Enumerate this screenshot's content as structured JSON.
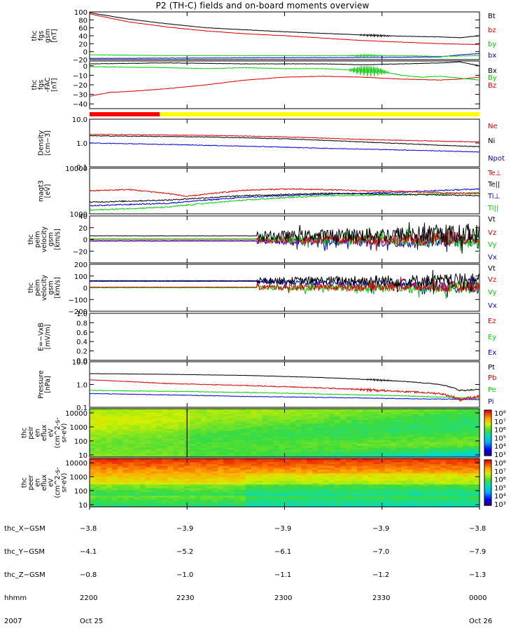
{
  "title": "P2 (TH-C) fields and on-board moments overview",
  "colors": {
    "black": "#000000",
    "red": "#e00000",
    "green": "#00d000",
    "blue": "#0000e0",
    "redBar": "#ff0000",
    "yellowBar": "#ffff00"
  },
  "chart_data": [
    {
      "type": "line",
      "id": "fgs_gsm",
      "ylabel": [
        "thc",
        "fgs",
        "gsm",
        "[nT]"
      ],
      "ylim": [
        -20,
        100
      ],
      "yticks": [
        -20,
        0,
        20,
        40,
        60,
        80,
        100
      ],
      "ytick_labels": [
        "−20",
        "0",
        "20",
        "40",
        "60",
        "80",
        "100"
      ],
      "series": [
        {
          "name": "Bt",
          "color": "black",
          "x": [
            0,
            0.1,
            0.2,
            0.3,
            0.4,
            0.5,
            0.6,
            0.65,
            0.7,
            0.75,
            0.8,
            0.9,
            0.95,
            1.0
          ],
          "values": [
            98,
            82,
            70,
            60,
            55,
            50,
            46,
            44,
            42,
            40,
            39,
            37,
            35,
            40
          ],
          "osc": [
            0.68,
            0.78,
            3
          ]
        },
        {
          "name": "bz",
          "color": "red",
          "x": [
            0,
            0.1,
            0.2,
            0.3,
            0.4,
            0.5,
            0.6,
            0.7,
            0.8,
            0.9,
            1.0
          ],
          "values": [
            95,
            75,
            62,
            52,
            45,
            40,
            34,
            28,
            24,
            20,
            18
          ]
        },
        {
          "name": "by",
          "color": "green",
          "x": [
            0,
            0.2,
            0.4,
            0.6,
            0.7,
            0.8,
            0.9,
            1.0
          ],
          "values": [
            -8,
            -10,
            -10,
            -10,
            -10,
            -10,
            -12,
            -10
          ],
          "osc": [
            0.66,
            0.76,
            3
          ]
        },
        {
          "name": "bx",
          "color": "blue",
          "x": [
            0,
            0.3,
            0.6,
            0.8,
            0.9,
            0.95,
            1.0
          ],
          "values": [
            -17,
            -16,
            -15,
            -14,
            -13,
            -8,
            -5
          ]
        }
      ]
    },
    {
      "type": "line",
      "id": "fgs_fac",
      "ylabel": [
        "thc",
        "fgs",
        "-FAC",
        "[nT]"
      ],
      "ylim": [
        -45,
        5
      ],
      "yticks": [
        -40,
        -30,
        -20,
        -10,
        0
      ],
      "ytick_labels": [
        "−40",
        "−30",
        "−20",
        "−10",
        "0"
      ],
      "series": [
        {
          "name": "Bx",
          "color": "black",
          "x": [
            0,
            0.2,
            0.4,
            0.6,
            0.7,
            0.8,
            0.9,
            0.95,
            1.0
          ],
          "values": [
            2,
            3,
            2,
            2,
            1,
            2,
            3,
            4,
            0
          ]
        },
        {
          "name": "By",
          "color": "green",
          "x": [
            0,
            0.2,
            0.3,
            0.4,
            0.5,
            0.6,
            0.7,
            0.75,
            0.8,
            0.85,
            0.9,
            0.95,
            1.0
          ],
          "values": [
            -1,
            -2,
            -3,
            -2,
            -3,
            -3,
            -5,
            -6,
            -10,
            -12,
            -11,
            -13,
            -15
          ],
          "osc": [
            0.66,
            0.77,
            6
          ]
        },
        {
          "name": "Bz",
          "color": "red",
          "x": [
            0,
            0.05,
            0.1,
            0.2,
            0.3,
            0.4,
            0.5,
            0.6,
            0.7,
            0.8,
            0.9,
            0.95,
            1.0
          ],
          "values": [
            -32,
            -28,
            -27,
            -24,
            -20,
            -15,
            -12,
            -11,
            -12,
            -14,
            -15,
            -14,
            -12
          ]
        }
      ]
    },
    {
      "type": "line",
      "id": "density",
      "ylabel": [
        "Density",
        "[cm−3]"
      ],
      "scale": "log",
      "ylim": [
        0.1,
        10
      ],
      "yticks": [
        0.1,
        1,
        10
      ],
      "ytick_labels": [
        "0.1",
        "1.0",
        "10.0"
      ],
      "series": [
        {
          "name": "Ne",
          "color": "red",
          "x": [
            0,
            0.3,
            0.5,
            0.7,
            0.9,
            1.0
          ],
          "values": [
            2.3,
            2.1,
            1.8,
            1.4,
            1.2,
            1.1
          ]
        },
        {
          "name": "Ni",
          "color": "black",
          "x": [
            0,
            0.3,
            0.5,
            0.7,
            0.9,
            1.0
          ],
          "values": [
            2.0,
            1.8,
            1.5,
            1.1,
            0.8,
            0.7
          ]
        },
        {
          "name": "Npot",
          "color": "blue",
          "x": [
            0,
            0.3,
            0.6,
            1.0
          ],
          "values": [
            1.0,
            0.8,
            0.6,
            0.42
          ]
        }
      ]
    },
    {
      "type": "line",
      "id": "temperature",
      "ylabel": [
        "magt3",
        "[eV]"
      ],
      "scale": "log",
      "ylim": [
        1000,
        10000
      ],
      "yticks": [
        1000,
        10000
      ],
      "ytick_labels": [
        "1000",
        "10000"
      ],
      "series": [
        {
          "name": "Te⊥",
          "color": "red",
          "x": [
            0,
            0.1,
            0.2,
            0.25,
            0.3,
            0.4,
            0.5,
            0.6,
            0.7,
            0.8,
            0.9,
            1.0
          ],
          "values": [
            3200,
            3400,
            2800,
            2400,
            2700,
            3300,
            3500,
            3400,
            3200,
            3100,
            2900,
            2800
          ]
        },
        {
          "name": "Te||",
          "color": "black",
          "x": [
            0,
            0.2,
            0.4,
            0.6,
            0.8,
            1.0
          ],
          "values": [
            1800,
            2000,
            2500,
            2800,
            2700,
            2500
          ]
        },
        {
          "name": "Ti⊥",
          "color": "blue",
          "x": [
            0,
            0.2,
            0.4,
            0.6,
            0.8,
            1.0
          ],
          "values": [
            1500,
            1700,
            2300,
            2700,
            3000,
            3500
          ]
        },
        {
          "name": "Ti||",
          "color": "green",
          "x": [
            0,
            0.2,
            0.4,
            0.6,
            0.8,
            1.0
          ],
          "values": [
            1200,
            1400,
            2000,
            2500,
            2600,
            2900
          ]
        }
      ]
    },
    {
      "type": "line",
      "id": "peim_velocity_gsm",
      "ylabel": [
        "thc",
        "peim",
        "velocity",
        "gsm",
        "[km/s]"
      ],
      "ylim": [
        -40,
        40
      ],
      "yticks": [
        -20,
        0,
        20,
        40
      ],
      "ytick_labels": [
        "−20",
        "0",
        "20",
        "40"
      ],
      "noise_start": 0.43,
      "series": [
        {
          "name": "Vt",
          "color": "black",
          "x": [
            0,
            0.43,
            1.0
          ],
          "values": [
            6,
            6,
            10
          ],
          "noise": 12
        },
        {
          "name": "Vz",
          "color": "red",
          "x": [
            0,
            0.43,
            1.0
          ],
          "values": [
            -1,
            -1,
            0
          ],
          "noise": 9
        },
        {
          "name": "Vy",
          "color": "green",
          "x": [
            0,
            0.43,
            1.0
          ],
          "values": [
            1,
            1,
            -2
          ],
          "noise": 9
        },
        {
          "name": "Vx",
          "color": "blue",
          "x": [
            0,
            0.43,
            1.0
          ],
          "values": [
            -3,
            -3,
            -3
          ],
          "noise": 9
        }
      ]
    },
    {
      "type": "line",
      "id": "peim_velocity",
      "ylabel": [
        "thc",
        "peim",
        "velocity",
        "gsm",
        "[km/s]"
      ],
      "ylim": [
        -200,
        200
      ],
      "yticks": [
        -200,
        -100,
        0,
        100,
        200
      ],
      "ytick_labels": [
        "−200",
        "−100",
        "0",
        "100",
        "200"
      ],
      "noise_start": 0.43,
      "series": [
        {
          "name": "Vt",
          "color": "black",
          "x": [
            0,
            0.43,
            1.0
          ],
          "values": [
            60,
            60,
            60
          ],
          "noise": 45
        },
        {
          "name": "Vz",
          "color": "red",
          "x": [
            0,
            0.43,
            1.0
          ],
          "values": [
            5,
            5,
            10
          ],
          "noise": 35
        },
        {
          "name": "Vy",
          "color": "green",
          "x": [
            0,
            0.43,
            1.0
          ],
          "values": [
            0,
            0,
            0
          ],
          "noise": 35
        },
        {
          "name": "Vx",
          "color": "blue",
          "x": [
            0,
            0.43,
            1.0
          ],
          "values": [
            55,
            55,
            0
          ],
          "noise": 35
        }
      ]
    },
    {
      "type": "line",
      "id": "efield",
      "ylabel": [
        "E=−VxB",
        "[mV/m]"
      ],
      "ylim": [
        0,
        1
      ],
      "yticks": [
        0,
        0.2,
        0.4,
        0.6,
        0.8,
        1.0
      ],
      "ytick_labels": [
        "0.0",
        "0.2",
        "0.4",
        "0.6",
        "0.8",
        "1.0"
      ],
      "series": [
        {
          "name": "Ez",
          "color": "red",
          "x": [],
          "values": []
        },
        {
          "name": "Ey",
          "color": "green",
          "x": [],
          "values": []
        },
        {
          "name": "Ex",
          "color": "blue",
          "x": [],
          "values": []
        }
      ]
    },
    {
      "type": "line",
      "id": "pressure",
      "ylabel": [
        "Pressure",
        "[nPa]"
      ],
      "scale": "log",
      "ylim": [
        0.1,
        10
      ],
      "yticks": [
        0.1,
        1,
        10
      ],
      "ytick_labels": [
        "0.1",
        "1.0",
        "10.0"
      ],
      "series": [
        {
          "name": "Pt",
          "color": "black",
          "x": [
            0,
            0.2,
            0.4,
            0.6,
            0.8,
            0.9,
            0.95,
            1.0
          ],
          "values": [
            3.0,
            2.8,
            2.5,
            2.0,
            1.4,
            1.0,
            0.55,
            0.6
          ],
          "osc": [
            0.7,
            0.78,
            0.05
          ]
        },
        {
          "name": "Pb",
          "color": "red",
          "x": [
            0,
            0.2,
            0.4,
            0.6,
            0.8,
            0.9,
            0.95,
            1.0
          ],
          "values": [
            1.6,
            1.1,
            0.9,
            0.7,
            0.5,
            0.4,
            0.22,
            0.3
          ],
          "osc": [
            0.68,
            0.78,
            0.05
          ]
        },
        {
          "name": "Pe",
          "color": "green",
          "x": [
            0,
            0.2,
            0.4,
            0.6,
            0.8,
            0.9,
            1.0
          ],
          "values": [
            0.55,
            0.5,
            0.45,
            0.38,
            0.32,
            0.28,
            0.25
          ]
        },
        {
          "name": "Pi",
          "color": "blue",
          "x": [
            0,
            0.2,
            0.4,
            0.6,
            0.8,
            1.0
          ],
          "values": [
            0.4,
            0.35,
            0.3,
            0.27,
            0.24,
            0.22
          ]
        }
      ]
    },
    {
      "type": "heatmap",
      "id": "peir_spectrogram",
      "ylabel": [
        "thc",
        "peir",
        "en",
        "eflux",
        "eV",
        "(cm^2-s-",
        "sr-eV)"
      ],
      "scale": "log",
      "ylim": [
        7,
        20000
      ],
      "yticks": [
        10,
        100,
        1000,
        10000
      ],
      "ytick_labels": [
        "10",
        "100",
        "1000",
        "10000"
      ],
      "colorbar_ticks": [
        "10³",
        "10⁴",
        "10⁵",
        "10⁶",
        "10⁷",
        "10⁸"
      ]
    },
    {
      "type": "heatmap",
      "id": "peer_spectrogram",
      "ylabel": [
        "thc",
        "peer",
        "en",
        "eflux",
        "eV",
        "(cm^2-s-",
        "sr-eV)"
      ],
      "scale": "log",
      "ylim": [
        7,
        20000
      ],
      "yticks": [
        10,
        100,
        1000,
        10000
      ],
      "ytick_labels": [
        "10",
        "100",
        "1000",
        "10000"
      ],
      "colorbar_ticks": [
        "10³",
        "10⁴",
        "10⁵",
        "10⁶",
        "10⁷",
        "10⁸"
      ]
    }
  ],
  "mode_bar": {
    "red_end_fraction": 0.18,
    "colors": [
      "red",
      "yellow"
    ]
  },
  "footer": {
    "row_labels": [
      "thc_X−GSM",
      "thc_Y−GSM",
      "thc_Z−GSM",
      "hhmm",
      "2007"
    ],
    "columns": [
      {
        "lines": [
          "−3.8",
          "−4.1",
          "−0.8",
          "2200",
          "Oct 25"
        ]
      },
      {
        "lines": [
          "−3.9",
          "−5.2",
          "−1.0",
          "2230",
          ""
        ]
      },
      {
        "lines": [
          "−3.9",
          "−6.1",
          "−1.1",
          "2300",
          ""
        ]
      },
      {
        "lines": [
          "−3.9",
          "−7.0",
          "−1.2",
          "2330",
          ""
        ]
      },
      {
        "lines": [
          "−3.8",
          "−7.9",
          "−1.3",
          "0000",
          "Oct 26"
        ]
      }
    ]
  }
}
